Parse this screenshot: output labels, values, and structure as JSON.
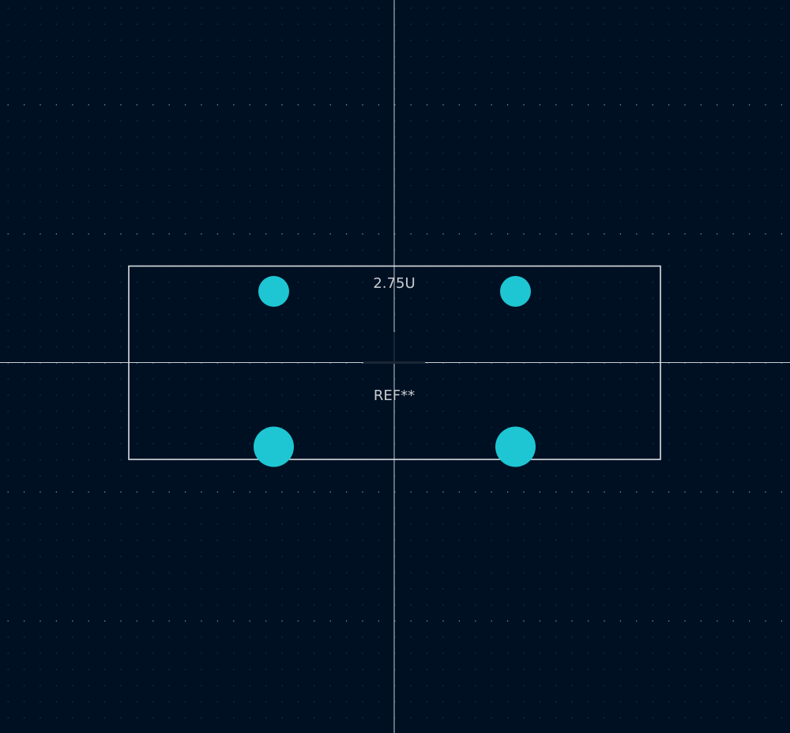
{
  "footprint": {
    "value_label": "2.75U",
    "reference_label": "REF**"
  },
  "colors": {
    "background": "#001023",
    "grid_dot": "#3d5a6b",
    "grid_dot_major": "#7f9aa8",
    "crosshair": "#c8cdd2",
    "outline": "#d9dde0",
    "pad": "#1ec6d3",
    "text": "#c8ccd0"
  }
}
